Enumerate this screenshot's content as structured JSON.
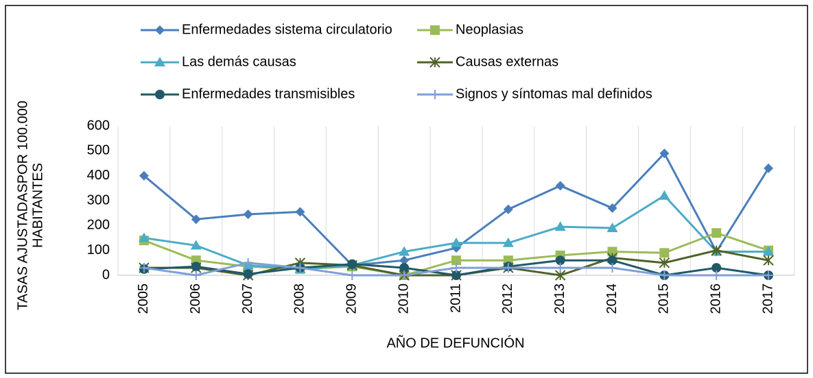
{
  "chart_data": {
    "type": "line",
    "ylabel": [
      "TASAS AJUSTADASPOR 100.000",
      "HABITANTES"
    ],
    "xlabel": "AÑO DE DEFUNCIÓN",
    "categories": [
      "2005",
      "2006",
      "2007",
      "2008",
      "2009",
      "2010",
      "2011",
      "2012",
      "2013",
      "2014",
      "2015",
      "2016",
      "2017"
    ],
    "ylim": [
      0,
      600
    ],
    "yticks": [
      0,
      100,
      200,
      300,
      400,
      500,
      600
    ],
    "grid": true,
    "legend": "top",
    "series": [
      {
        "name": "Enfermedades sistema circulatorio",
        "color": "#4a7ebb",
        "marker": "diamond",
        "values": [
          400,
          225,
          245,
          255,
          40,
          60,
          110,
          265,
          360,
          270,
          490,
          95,
          430
        ]
      },
      {
        "name": "Neoplasias",
        "color": "#9bbb59",
        "marker": "square",
        "values": [
          140,
          60,
          35,
          25,
          35,
          0,
          60,
          60,
          80,
          95,
          90,
          170,
          100
        ]
      },
      {
        "name": "Las demás causas",
        "color": "#4bacc6",
        "marker": "triangle",
        "values": [
          150,
          120,
          40,
          25,
          40,
          95,
          130,
          130,
          195,
          190,
          320,
          95,
          95
        ]
      },
      {
        "name": "Causas externas",
        "color": "#4f6228",
        "marker": "star",
        "values": [
          30,
          30,
          0,
          50,
          40,
          0,
          0,
          30,
          0,
          70,
          50,
          100,
          60
        ]
      },
      {
        "name": "Enfermedades transmisibles",
        "color": "#215968",
        "marker": "circle",
        "values": [
          25,
          35,
          5,
          30,
          45,
          30,
          0,
          35,
          60,
          60,
          0,
          30,
          0
        ]
      },
      {
        "name": "Signos y síntomas mal definidos",
        "color": "#7f9fd8",
        "marker": "plus",
        "values": [
          30,
          0,
          50,
          30,
          0,
          0,
          30,
          30,
          30,
          30,
          0,
          0,
          0
        ]
      }
    ]
  }
}
